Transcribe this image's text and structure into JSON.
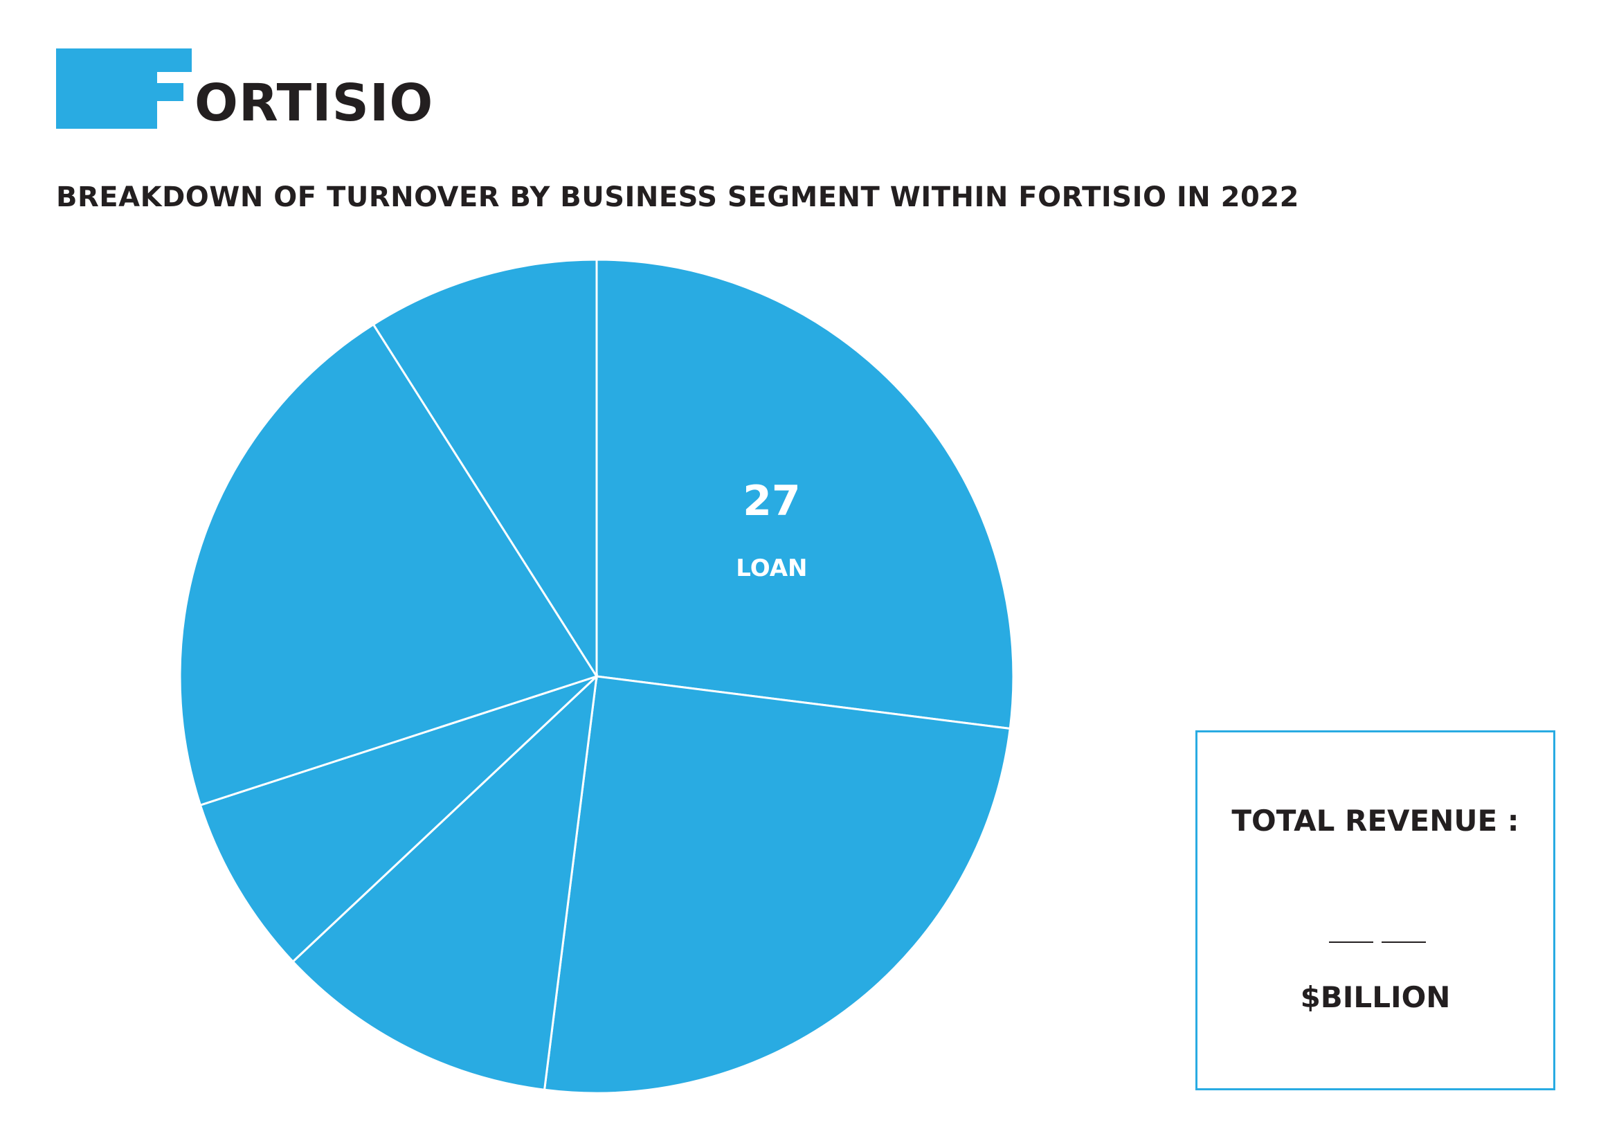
{
  "brand": {
    "name": "FORTISIO",
    "logo_text": "ORTISIO",
    "accent_color": "#29abe2"
  },
  "chart_data": {
    "type": "pie",
    "title": "BREAKDOWN OF TURNOVER BY BUSINESS SEGMENT WITHIN FORTISIO IN 2022",
    "slice_color": "#29abe2",
    "separator_color": "#ffffff",
    "start": "top",
    "direction": "clockwise",
    "slices": [
      {
        "value": 27,
        "label": "LOAN",
        "value_label": "27"
      },
      {
        "value": 25
      },
      {
        "value": 11
      },
      {
        "value": 7
      },
      {
        "value": 21
      },
      {
        "value": 9
      }
    ]
  },
  "total_revenue": {
    "label": "TOTAL REVENUE :",
    "unit": "$BILLION"
  }
}
